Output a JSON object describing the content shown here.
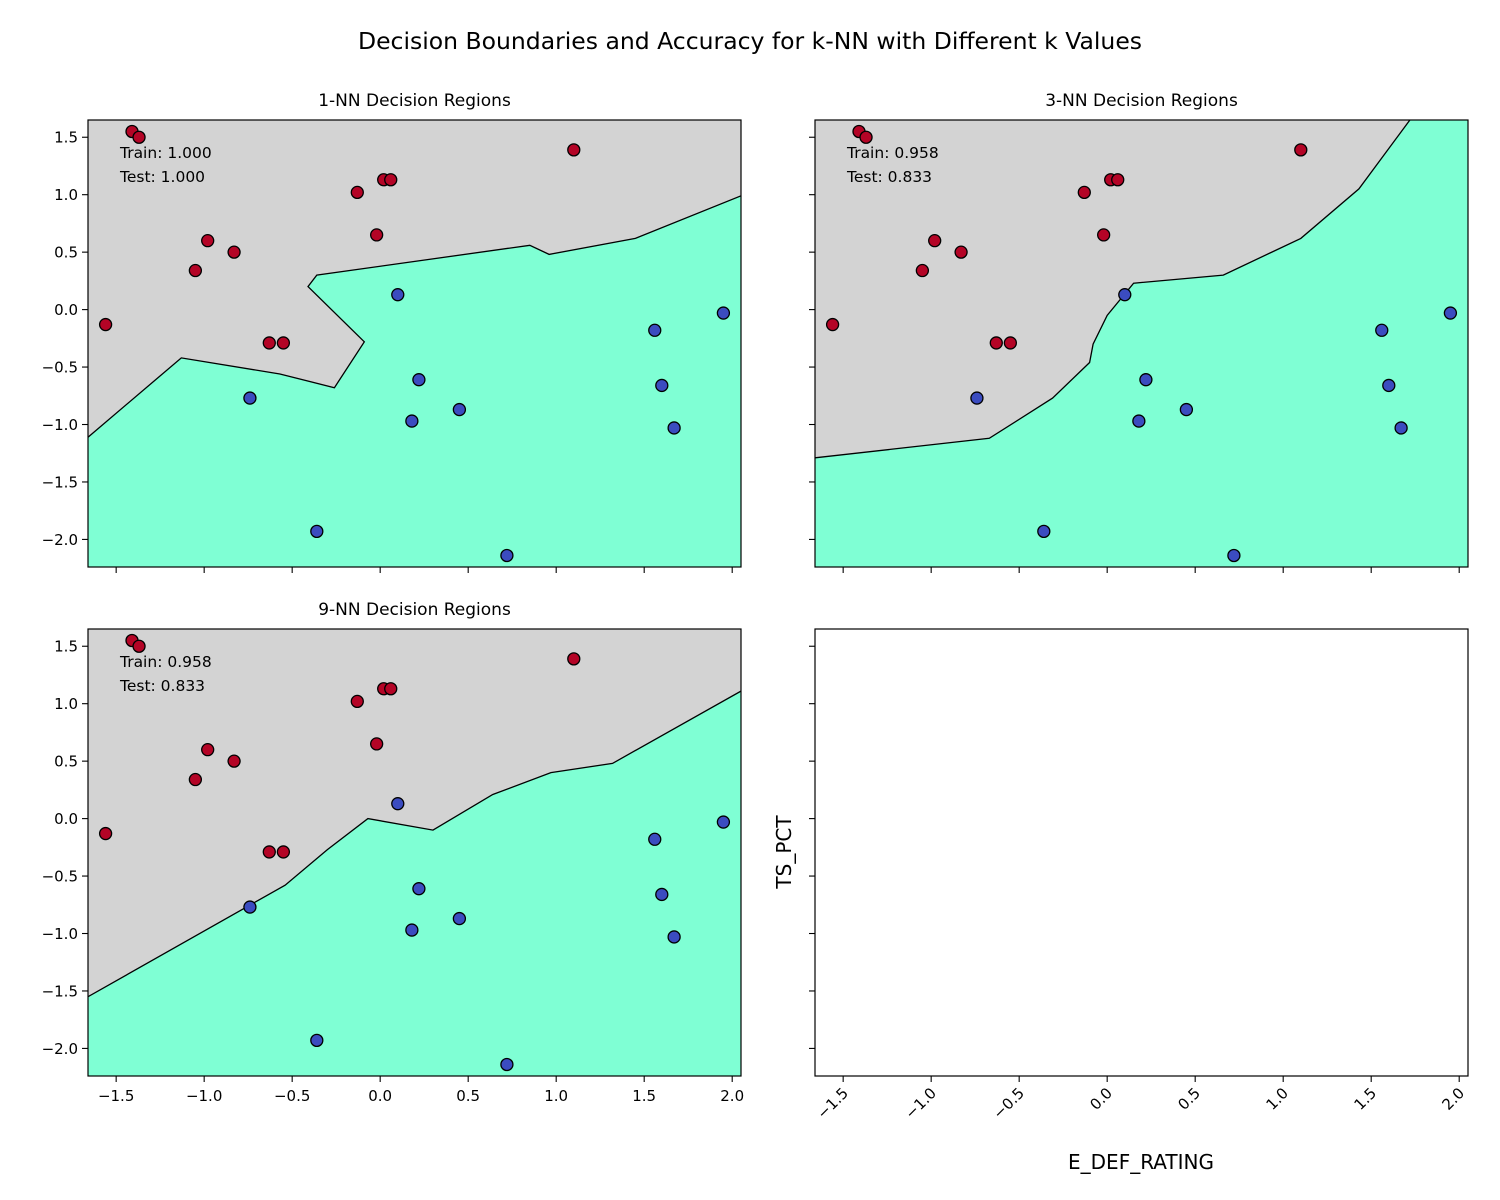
{
  "figure": {
    "suptitle": "Decision Boundaries and Accuracy for k-NN with Different k Values",
    "xlabel": "E_DEF_RATING",
    "ylabel": "TS_PCT"
  },
  "colors": {
    "region_class0": "#d3d3d3",
    "region_class1": "#7fffd4",
    "point_class0": "#b40426",
    "point_class1": "#3b4cc0",
    "edge": "#000000"
  },
  "chart_data": [
    {
      "type": "scatter",
      "title": "1-NN Decision Regions",
      "train_label": "Train: 1.000",
      "test_label": "Test: 1.000",
      "xlim": [
        -1.66,
        2.05
      ],
      "ylim": [
        -2.24,
        1.65
      ],
      "xticks": [
        "-1.5",
        "-1.0",
        "-0.5",
        "0.0",
        "0.5",
        "1.0",
        "1.5",
        "2.0"
      ],
      "yticks": [
        "1.5",
        "1.0",
        "0.5",
        "0.0",
        "-0.5",
        "-1.0",
        "-1.5",
        "-2.0"
      ],
      "boundary": [
        [
          -1.66,
          -1.11
        ],
        [
          -1.13,
          -0.42
        ],
        [
          -0.57,
          -0.56
        ],
        [
          -0.26,
          -0.68
        ],
        [
          -0.09,
          -0.28
        ],
        [
          -0.41,
          0.2
        ],
        [
          -0.36,
          0.3
        ],
        [
          0.85,
          0.56
        ],
        [
          0.96,
          0.48
        ],
        [
          1.45,
          0.62
        ],
        [
          2.05,
          0.99
        ]
      ]
    },
    {
      "type": "scatter",
      "title": "3-NN Decision Regions",
      "train_label": "Train: 0.958",
      "test_label": "Test: 0.833",
      "xlim": [
        -1.66,
        2.05
      ],
      "ylim": [
        -2.24,
        1.65
      ],
      "xticks": [
        "-1.5",
        "-1.0",
        "-0.5",
        "0.0",
        "0.5",
        "1.0",
        "1.5",
        "2.0"
      ],
      "yticks": [
        "1.5",
        "1.0",
        "0.5",
        "0.0",
        "-0.5",
        "-1.0",
        "-1.5",
        "-2.0"
      ],
      "boundary": [
        [
          -1.66,
          -1.29
        ],
        [
          -0.67,
          -1.12
        ],
        [
          -0.31,
          -0.77
        ],
        [
          -0.1,
          -0.46
        ],
        [
          -0.08,
          -0.3
        ],
        [
          0.0,
          -0.05
        ],
        [
          0.15,
          0.23
        ],
        [
          0.66,
          0.3
        ],
        [
          1.1,
          0.62
        ],
        [
          1.43,
          1.05
        ],
        [
          1.72,
          1.65
        ]
      ]
    },
    {
      "type": "scatter",
      "title": "9-NN Decision Regions",
      "train_label": "Train: 0.958",
      "test_label": "Test: 0.833",
      "xlim": [
        -1.66,
        2.05
      ],
      "ylim": [
        -2.24,
        1.65
      ],
      "xticks": [
        "-1.5",
        "-1.0",
        "-0.5",
        "0.0",
        "0.5",
        "1.0",
        "1.5",
        "2.0"
      ],
      "yticks": [
        "1.5",
        "1.0",
        "0.5",
        "0.0",
        "-0.5",
        "-1.0",
        "-1.5",
        "-2.0"
      ],
      "boundary": [
        [
          -1.66,
          -1.55
        ],
        [
          -0.54,
          -0.58
        ],
        [
          -0.3,
          -0.27
        ],
        [
          -0.07,
          0.0
        ],
        [
          0.3,
          -0.1
        ],
        [
          0.64,
          0.21
        ],
        [
          0.97,
          0.4
        ],
        [
          1.32,
          0.48
        ],
        [
          2.05,
          1.11
        ]
      ]
    },
    {
      "type": "scatter",
      "title": "",
      "empty": true,
      "xlim": [
        -1.66,
        2.05
      ],
      "ylim": [
        -2.24,
        1.65
      ],
      "xticks": [
        "-1.5",
        "-1.0",
        "-0.5",
        "0.0",
        "0.5",
        "1.0",
        "1.5",
        "2.0"
      ]
    }
  ],
  "points": [
    {
      "x": -1.41,
      "y": 1.55,
      "class": 0
    },
    {
      "x": -1.37,
      "y": 1.5,
      "class": 0
    },
    {
      "x": 1.1,
      "y": 1.39,
      "class": 0
    },
    {
      "x": 0.02,
      "y": 1.13,
      "class": 0
    },
    {
      "x": 0.06,
      "y": 1.13,
      "class": 0
    },
    {
      "x": -0.13,
      "y": 1.02,
      "class": 0
    },
    {
      "x": -0.02,
      "y": 0.65,
      "class": 0
    },
    {
      "x": -0.98,
      "y": 0.6,
      "class": 0
    },
    {
      "x": -0.83,
      "y": 0.5,
      "class": 0
    },
    {
      "x": -1.05,
      "y": 0.34,
      "class": 0
    },
    {
      "x": -1.56,
      "y": -0.13,
      "class": 0
    },
    {
      "x": -0.63,
      "y": -0.29,
      "class": 0
    },
    {
      "x": -0.55,
      "y": -0.29,
      "class": 0
    },
    {
      "x": 0.1,
      "y": 0.13,
      "class": 1
    },
    {
      "x": 1.95,
      "y": -0.03,
      "class": 1
    },
    {
      "x": 1.56,
      "y": -0.18,
      "class": 1
    },
    {
      "x": 0.22,
      "y": -0.61,
      "class": 1
    },
    {
      "x": 1.6,
      "y": -0.66,
      "class": 1
    },
    {
      "x": -0.74,
      "y": -0.77,
      "class": 1
    },
    {
      "x": 0.45,
      "y": -0.87,
      "class": 1
    },
    {
      "x": 0.18,
      "y": -0.97,
      "class": 1
    },
    {
      "x": 1.67,
      "y": -1.03,
      "class": 1
    },
    {
      "x": -0.36,
      "y": -1.93,
      "class": 1
    },
    {
      "x": 0.72,
      "y": -2.14,
      "class": 1
    }
  ]
}
